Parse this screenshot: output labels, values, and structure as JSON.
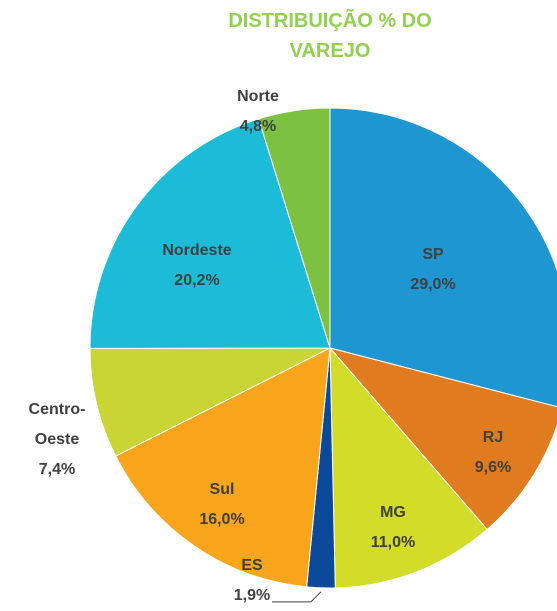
{
  "chart_data": {
    "type": "pie",
    "title": "DISTRIBUIÇÃO % DO VAREJO",
    "categories": [
      "SP",
      "RJ",
      "MG",
      "ES",
      "Sul",
      "Centro-Oeste",
      "Nordeste",
      "Norte"
    ],
    "values": [
      29.0,
      9.6,
      11.0,
      1.9,
      16.0,
      7.4,
      20.2,
      4.8
    ],
    "value_labels": [
      "29,0%",
      "9,6%",
      "11,0%",
      "1,9%",
      "16,0%",
      "7,4%",
      "20,2%",
      "4,8%"
    ],
    "colors": [
      "#1e96d2",
      "#e07b1f",
      "#d4dc2a",
      "#0b4a9a",
      "#f8a51c",
      "#c9d534",
      "#1cbcd8",
      "#7dc142"
    ]
  }
}
